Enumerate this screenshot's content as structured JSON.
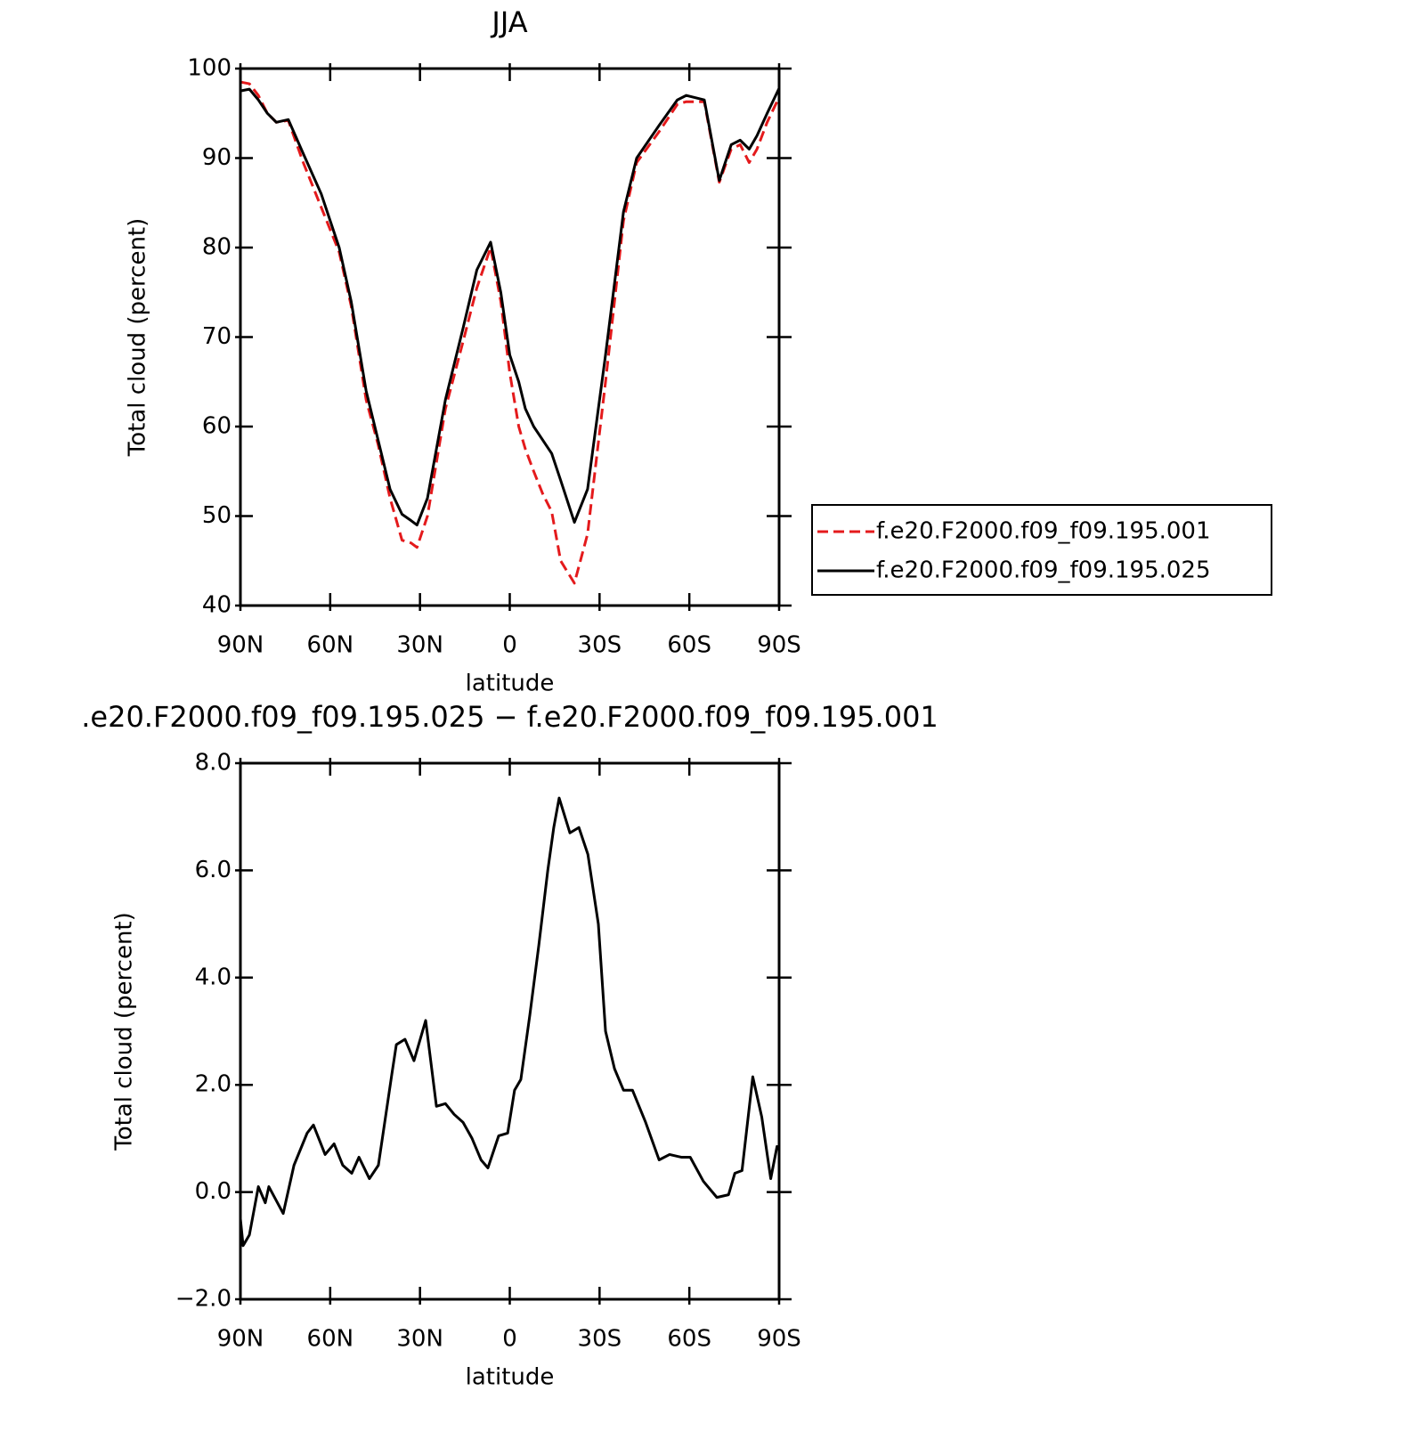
{
  "chart_data": [
    {
      "type": "line",
      "title": "JJA",
      "xlabel": "latitude",
      "ylabel": "Total cloud (percent)",
      "x": [
        90,
        87,
        84,
        81,
        78,
        74,
        69,
        63,
        57,
        53,
        48,
        44,
        40,
        36,
        33,
        31,
        27.5,
        21.5,
        15.6,
        11,
        6.4,
        3,
        0,
        -3,
        -5.2,
        -8,
        -11,
        -14,
        -17,
        -21.6,
        -26,
        -32,
        -38,
        -42.4,
        -50,
        -56,
        -59,
        -65,
        -70,
        -74,
        -77,
        -80,
        -82.6,
        -86,
        -90
      ],
      "series": [
        {
          "name": "f.e20.F2000.f09_f09.195.001",
          "color": "#e41a1c",
          "dashed": true,
          "values": [
            98.5,
            98.3,
            97,
            95,
            94,
            94.2,
            89.5,
            84.5,
            79.5,
            73.5,
            63,
            58,
            52,
            47.3,
            47,
            46.5,
            50,
            62,
            69.5,
            75.5,
            80,
            74,
            66,
            60,
            57.5,
            55,
            52.5,
            50.5,
            45,
            42.5,
            48,
            65,
            83,
            89.5,
            93,
            96,
            96.3,
            96.3,
            87.3,
            91,
            91.5,
            89.5,
            91,
            94,
            96.8
          ]
        },
        {
          "name": "f.e20.F2000.f09_f09.195.025",
          "color": "#000000",
          "dashed": false,
          "values": [
            97.5,
            97.7,
            96.5,
            95,
            94,
            94.3,
            90.5,
            86,
            80,
            74,
            64,
            58.5,
            53,
            50.2,
            49.5,
            49,
            52,
            63,
            71,
            77.5,
            80.6,
            75,
            68,
            65,
            62,
            60,
            58.5,
            57,
            54,
            49.3,
            53,
            68,
            84,
            90,
            93.7,
            96.5,
            97,
            96.5,
            87.5,
            91.5,
            92,
            91,
            92.5,
            95,
            97.8
          ]
        }
      ],
      "xlim": [
        90,
        -90
      ],
      "xticks": [
        {
          "value": 90,
          "label": "90N"
        },
        {
          "value": 60,
          "label": "60N"
        },
        {
          "value": 30,
          "label": "30N"
        },
        0,
        {
          "value": -30,
          "label": "30S"
        },
        {
          "value": -60,
          "label": "60S"
        },
        {
          "value": -90,
          "label": "90S"
        }
      ],
      "ylim": [
        40,
        100
      ],
      "yticks": [
        40,
        50,
        60,
        70,
        80,
        90,
        100
      ],
      "legend": "right"
    },
    {
      "type": "line",
      "title": ".e20.F2000.f09_f09.195.025 − f.e20.F2000.f09_f09.195.001",
      "xlabel": "latitude",
      "ylabel": "Total cloud (percent)",
      "x": [
        90,
        89.1,
        87,
        84,
        81.7,
        80.5,
        75.7,
        72.1,
        67.7,
        65.6,
        61.7,
        58.7,
        55.8,
        52.8,
        50.4,
        46.9,
        43.9,
        39.4,
        37.9,
        35,
        32,
        28.1,
        24.5,
        21.5,
        18.6,
        15.6,
        12.6,
        9.6,
        7.3,
        3.7,
        0.7,
        -1.6,
        -3.7,
        -6.7,
        -9.7,
        -12.7,
        -14.7,
        -16.5,
        -20.1,
        -23.1,
        -26.1,
        -29.6,
        -32,
        -35,
        -38,
        -41,
        -45.4,
        -49.9,
        -53.4,
        -57.3,
        -60.3,
        -64.7,
        -69.2,
        -73.1,
        -75.2,
        -77.6,
        -81.2,
        -84.2,
        -87.2,
        -89.3,
        -90
      ],
      "values": [
        -0.5,
        -1.0,
        -0.8,
        0.1,
        -0.2,
        0.1,
        -0.4,
        0.5,
        1.1,
        1.25,
        0.7,
        0.9,
        0.5,
        0.35,
        0.65,
        0.25,
        0.5,
        2.2,
        2.75,
        2.85,
        2.45,
        3.2,
        1.6,
        1.65,
        1.45,
        1.3,
        1.0,
        0.6,
        0.45,
        1.05,
        1.1,
        1.9,
        2.1,
        3.3,
        4.6,
        6.0,
        6.8,
        7.35,
        6.7,
        6.8,
        6.3,
        5.0,
        3.0,
        2.3,
        1.9,
        1.9,
        1.3,
        0.6,
        0.7,
        0.65,
        0.65,
        0.2,
        -0.1,
        -0.05,
        0.35,
        0.4,
        2.15,
        1.4,
        0.25,
        0.85,
        0.8
      ],
      "color": "#000000",
      "xlim": [
        90,
        -90
      ],
      "xticks": [
        {
          "value": 90,
          "label": "90N"
        },
        {
          "value": 60,
          "label": "60N"
        },
        {
          "value": 30,
          "label": "30N"
        },
        0,
        {
          "value": -30,
          "label": "30S"
        },
        {
          "value": -60,
          "label": "60S"
        },
        {
          "value": -90,
          "label": "90S"
        }
      ],
      "ylim": [
        -2,
        8
      ],
      "yticks": [
        {
          "value": -2,
          "label": "−2.0"
        },
        {
          "value": 0,
          "label": "0.0"
        },
        {
          "value": 2,
          "label": "2.0"
        },
        {
          "value": 4,
          "label": "4.0"
        },
        {
          "value": 6,
          "label": "6.0"
        },
        {
          "value": 8,
          "label": "8.0"
        }
      ]
    }
  ]
}
